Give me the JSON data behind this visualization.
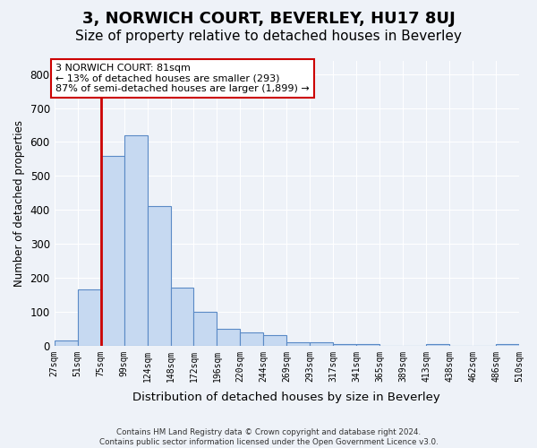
{
  "title1": "3, NORWICH COURT, BEVERLEY, HU17 8UJ",
  "title2": "Size of property relative to detached houses in Beverley",
  "xlabel": "Distribution of detached houses by size in Beverley",
  "ylabel": "Number of detached properties",
  "footer1": "Contains HM Land Registry data © Crown copyright and database right 2024.",
  "footer2": "Contains public sector information licensed under the Open Government Licence v3.0.",
  "bin_labels": [
    "27sqm",
    "51sqm",
    "75sqm",
    "99sqm",
    "124sqm",
    "148sqm",
    "172sqm",
    "196sqm",
    "220sqm",
    "244sqm",
    "269sqm",
    "293sqm",
    "317sqm",
    "341sqm",
    "365sqm",
    "389sqm",
    "413sqm",
    "438sqm",
    "462sqm",
    "486sqm",
    "510sqm"
  ],
  "bar_values": [
    15,
    165,
    560,
    620,
    410,
    170,
    100,
    50,
    40,
    30,
    10,
    10,
    5,
    5,
    0,
    0,
    5,
    0,
    0,
    5
  ],
  "bar_color": "#c6d9f1",
  "bar_edge_color": "#5a8ac6",
  "subject_line_color": "#cc0000",
  "annotation_text": "3 NORWICH COURT: 81sqm\n← 13% of detached houses are smaller (293)\n87% of semi-detached houses are larger (1,899) →",
  "annotation_box_color": "#ffffff",
  "annotation_box_edge": "#cc0000",
  "ylim": [
    0,
    840
  ],
  "yticks": [
    0,
    100,
    200,
    300,
    400,
    500,
    600,
    700,
    800
  ],
  "background_color": "#eef2f8",
  "grid_color": "#ffffff",
  "title1_fontsize": 13,
  "title2_fontsize": 11
}
